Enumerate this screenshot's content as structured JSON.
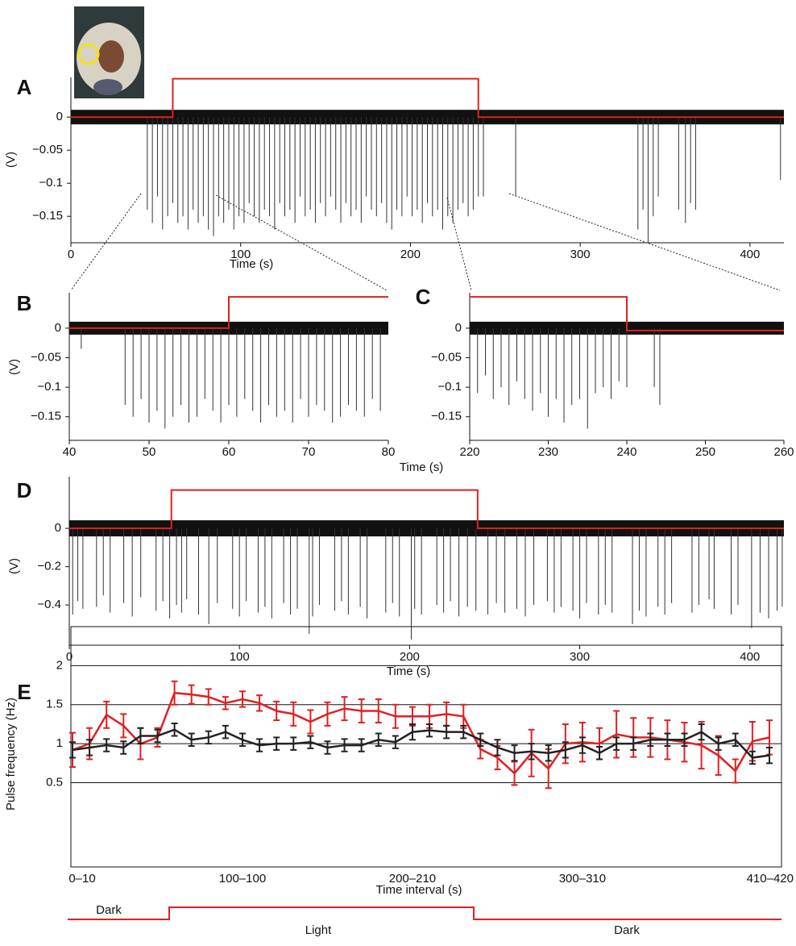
{
  "chart_data": [
    {
      "type": "trace",
      "panel": "A",
      "xlabel": "Time (s)",
      "ylabel": "(V)",
      "xlim": [
        0,
        420
      ],
      "xticks": [
        0,
        100,
        200,
        300,
        400
      ],
      "ylim": [
        -0.19,
        0.06
      ],
      "yticks": [
        0,
        {
          "value": -0.05,
          "label": "−0.05"
        },
        {
          "value": -0.1,
          "label": "−0.1"
        },
        {
          "value": -0.15,
          "label": "−0.15"
        }
      ],
      "stimulus": {
        "color": "#e02020",
        "x": [
          0,
          60,
          60,
          240,
          240,
          420
        ],
        "values": [
          0,
          0,
          0.058,
          0.058,
          0,
          0
        ]
      },
      "spikes": {
        "color": "#333333",
        "x": [
          45,
          48,
          51,
          54,
          57,
          60,
          63,
          66,
          69,
          72,
          75,
          78,
          81,
          84,
          87,
          90,
          93,
          96,
          99,
          102,
          105,
          108,
          111,
          114,
          117,
          120,
          123,
          126,
          129,
          132,
          135,
          138,
          141,
          144,
          147,
          150,
          153,
          156,
          159,
          162,
          165,
          168,
          171,
          174,
          177,
          180,
          183,
          186,
          189,
          192,
          195,
          198,
          201,
          204,
          207,
          210,
          213,
          216,
          219,
          222,
          225,
          228,
          231,
          234,
          237,
          240,
          243,
          262,
          334,
          337,
          340,
          343,
          346,
          358,
          362,
          365,
          368,
          418
        ],
        "values": [
          -0.14,
          -0.16,
          -0.12,
          -0.17,
          -0.15,
          -0.13,
          -0.16,
          -0.15,
          -0.17,
          -0.14,
          -0.16,
          -0.15,
          -0.17,
          -0.18,
          -0.15,
          -0.16,
          -0.14,
          -0.17,
          -0.15,
          -0.16,
          -0.13,
          -0.15,
          -0.16,
          -0.14,
          -0.15,
          -0.17,
          -0.13,
          -0.15,
          -0.14,
          -0.16,
          -0.12,
          -0.15,
          -0.14,
          -0.16,
          -0.13,
          -0.15,
          -0.12,
          -0.14,
          -0.16,
          -0.13,
          -0.15,
          -0.14,
          -0.16,
          -0.12,
          -0.14,
          -0.15,
          -0.13,
          -0.16,
          -0.17,
          -0.14,
          -0.15,
          -0.12,
          -0.15,
          -0.14,
          -0.16,
          -0.13,
          -0.15,
          -0.14,
          -0.17,
          -0.15,
          -0.16,
          -0.14,
          -0.13,
          -0.15,
          -0.14,
          -0.12,
          -0.12,
          -0.12,
          -0.17,
          -0.14,
          -0.19,
          -0.15,
          -0.12,
          -0.14,
          -0.16,
          -0.13,
          -0.14,
          -0.095
        ]
      }
    },
    {
      "type": "trace",
      "panel": "B",
      "xlabel": "Time (s)",
      "ylabel": "(V)",
      "xlim": [
        40,
        80
      ],
      "xticks": [
        40,
        50,
        60,
        70,
        80
      ],
      "ylim": [
        -0.19,
        0.06
      ],
      "yticks": [
        0,
        {
          "value": -0.05,
          "label": "−0.05"
        },
        {
          "value": -0.1,
          "label": "−0.1"
        },
        {
          "value": -0.15,
          "label": "−0.15"
        }
      ],
      "stimulus": {
        "color": "#e02020",
        "x": [
          40,
          60,
          60,
          80
        ],
        "values": [
          0,
          0,
          0.053,
          0.053
        ]
      },
      "spikes": {
        "color": "#333333",
        "x": [
          41.5,
          47,
          48,
          49,
          50,
          51,
          52,
          53,
          54,
          55,
          56,
          57,
          58,
          59,
          60,
          61,
          62,
          63,
          64,
          65,
          66,
          67,
          68,
          69,
          70,
          71,
          72,
          73,
          74,
          75,
          76,
          77,
          78,
          79
        ],
        "values": [
          -0.035,
          -0.13,
          -0.15,
          -0.12,
          -0.16,
          -0.14,
          -0.17,
          -0.15,
          -0.13,
          -0.16,
          -0.15,
          -0.12,
          -0.14,
          -0.16,
          -0.13,
          -0.15,
          -0.12,
          -0.14,
          -0.16,
          -0.13,
          -0.15,
          -0.14,
          -0.16,
          -0.12,
          -0.15,
          -0.13,
          -0.14,
          -0.16,
          -0.15,
          -0.13,
          -0.14,
          -0.15,
          -0.12,
          -0.14
        ]
      }
    },
    {
      "type": "trace",
      "panel": "C",
      "xlim": [
        220,
        260
      ],
      "xticks": [
        220,
        230,
        240,
        250,
        260
      ],
      "ylim": [
        -0.19,
        0.06
      ],
      "yticks": [
        0,
        {
          "value": -0.05,
          "label": "−0.05"
        },
        {
          "value": -0.1,
          "label": "−0.1"
        },
        {
          "value": -0.15,
          "label": "−0.15"
        }
      ],
      "stimulus": {
        "color": "#e02020",
        "x": [
          220,
          240,
          240,
          260
        ],
        "values": [
          0.053,
          0.053,
          -0.004,
          -0.004
        ]
      },
      "spikes": {
        "color": "#333333",
        "x": [
          221,
          222,
          223,
          224,
          225,
          226,
          227,
          228,
          229,
          230,
          231,
          232,
          233,
          234,
          235,
          236,
          237,
          238,
          239,
          240,
          243.5,
          244.2
        ],
        "values": [
          -0.11,
          -0.08,
          -0.12,
          -0.1,
          -0.13,
          -0.09,
          -0.12,
          -0.14,
          -0.11,
          -0.15,
          -0.12,
          -0.16,
          -0.13,
          -0.12,
          -0.17,
          -0.11,
          -0.1,
          -0.12,
          -0.09,
          -0.1,
          -0.1,
          -0.13
        ]
      }
    },
    {
      "type": "trace",
      "panel": "D",
      "xlabel": "Time (s)",
      "ylabel": "(V)",
      "xlim": [
        0,
        420
      ],
      "xticks": [
        0,
        100,
        200,
        300,
        400
      ],
      "ylim": [
        -0.61,
        0.27
      ],
      "yticks": [
        0,
        {
          "value": -0.2,
          "label": "−0.2"
        },
        {
          "value": -0.4,
          "label": "−0.4"
        }
      ],
      "stimulus": {
        "color": "#e02020",
        "x": [
          0,
          60,
          60,
          240,
          240,
          420
        ],
        "values": [
          0,
          0,
          0.2,
          0.2,
          0,
          0
        ]
      },
      "spikes": {
        "color": "#333333",
        "x": [
          2,
          5,
          8,
          16,
          20,
          24,
          32,
          37,
          42,
          51,
          55,
          59,
          63,
          66,
          69,
          76,
          82,
          87,
          96,
          100,
          104,
          111,
          115,
          119,
          126,
          130,
          134,
          141,
          143,
          147,
          156,
          160,
          164,
          171,
          175,
          186,
          190,
          194,
          201,
          203,
          207,
          216,
          220,
          224,
          229,
          234,
          239,
          246,
          251,
          256,
          263,
          268,
          273,
          281,
          285,
          289,
          296,
          300,
          304,
          311,
          315,
          319,
          331,
          335,
          339,
          346,
          350,
          354,
          366,
          370,
          376,
          379,
          389,
          393,
          401,
          406,
          411,
          416,
          419
        ],
        "values": [
          -0.45,
          -0.38,
          -0.42,
          -0.41,
          -0.35,
          -0.44,
          -0.39,
          -0.46,
          -0.36,
          -0.43,
          -0.38,
          -0.47,
          -0.4,
          -0.44,
          -0.37,
          -0.45,
          -0.5,
          -0.39,
          -0.42,
          -0.46,
          -0.38,
          -0.44,
          -0.41,
          -0.47,
          -0.39,
          -0.45,
          -0.42,
          -0.55,
          -0.46,
          -0.4,
          -0.43,
          -0.38,
          -0.45,
          -0.41,
          -0.47,
          -0.44,
          -0.39,
          -0.46,
          -0.58,
          -0.42,
          -0.45,
          -0.4,
          -0.44,
          -0.38,
          -0.46,
          -0.41,
          -0.43,
          -0.45,
          -0.39,
          -0.44,
          -0.42,
          -0.46,
          -0.4,
          -0.38,
          -0.44,
          -0.41,
          -0.43,
          -0.47,
          -0.39,
          -0.45,
          -0.4,
          -0.44,
          -0.5,
          -0.43,
          -0.46,
          -0.41,
          -0.45,
          -0.39,
          -0.44,
          -0.4,
          -0.37,
          -0.42,
          -0.45,
          -0.4,
          -0.52,
          -0.44,
          -0.47,
          -0.43,
          -0.41
        ]
      }
    },
    {
      "type": "line",
      "panel": "E",
      "xlabel": "Time interval (s)",
      "ylabel": "Pulse frequency (Hz)",
      "categories": [
        "0–10",
        null,
        null,
        null,
        null,
        null,
        null,
        null,
        null,
        null,
        "100–100",
        null,
        null,
        null,
        null,
        null,
        null,
        null,
        null,
        null,
        "200–210",
        null,
        null,
        null,
        null,
        null,
        null,
        null,
        null,
        null,
        "300–310",
        null,
        null,
        null,
        null,
        null,
        null,
        null,
        null,
        null,
        null,
        "410–420"
      ],
      "ylim": [
        -0.58,
        2.5
      ],
      "yticks": [
        0.5,
        1,
        1.5,
        2
      ],
      "grid": true,
      "series": [
        {
          "color": "#e02020",
          "values": [
            0.92,
            1.0,
            1.37,
            1.23,
            1.0,
            1.08,
            1.65,
            1.63,
            1.6,
            1.52,
            1.57,
            1.52,
            1.42,
            1.38,
            1.28,
            1.38,
            1.45,
            1.42,
            1.42,
            1.35,
            1.35,
            1.35,
            1.38,
            1.35,
            0.93,
            0.82,
            0.62,
            0.88,
            0.68,
            1.0,
            1.02,
            1.0,
            1.12,
            1.08,
            1.08,
            1.05,
            1.02,
            0.98,
            0.85,
            0.65,
            1.03,
            1.08
          ],
          "errors": [
            0.22,
            0.2,
            0.17,
            0.15,
            0.2,
            0.12,
            0.15,
            0.12,
            0.1,
            0.08,
            0.1,
            0.1,
            0.12,
            0.15,
            0.15,
            0.15,
            0.15,
            0.15,
            0.15,
            0.15,
            0.12,
            0.15,
            0.15,
            0.15,
            0.12,
            0.15,
            0.15,
            0.3,
            0.25,
            0.25,
            0.25,
            0.2,
            0.3,
            0.25,
            0.25,
            0.25,
            0.25,
            0.3,
            0.25,
            0.15,
            0.25,
            0.22
          ]
        },
        {
          "color": "#222222",
          "values": [
            0.92,
            0.95,
            0.98,
            0.95,
            1.1,
            1.1,
            1.18,
            1.05,
            1.08,
            1.15,
            1.05,
            0.98,
            1.0,
            1.0,
            1.02,
            0.95,
            0.98,
            0.98,
            1.05,
            1.02,
            1.15,
            1.17,
            1.15,
            1.15,
            1.05,
            0.95,
            0.88,
            0.9,
            0.88,
            0.92,
            0.98,
            0.88,
            1.0,
            1.0,
            1.05,
            1.05,
            1.05,
            1.15,
            1.0,
            1.05,
            0.82,
            0.85
          ],
          "errors": [
            0.1,
            0.1,
            0.08,
            0.08,
            0.1,
            0.08,
            0.08,
            0.08,
            0.08,
            0.08,
            0.08,
            0.08,
            0.08,
            0.08,
            0.08,
            0.08,
            0.08,
            0.08,
            0.08,
            0.08,
            0.1,
            0.08,
            0.08,
            0.08,
            0.08,
            0.1,
            0.1,
            0.1,
            0.1,
            0.1,
            0.1,
            0.08,
            0.08,
            0.08,
            0.08,
            0.08,
            0.08,
            0.1,
            0.08,
            0.08,
            0.08,
            0.1
          ]
        }
      ],
      "phases": [
        "Dark",
        "Light",
        "Dark"
      ]
    }
  ]
}
